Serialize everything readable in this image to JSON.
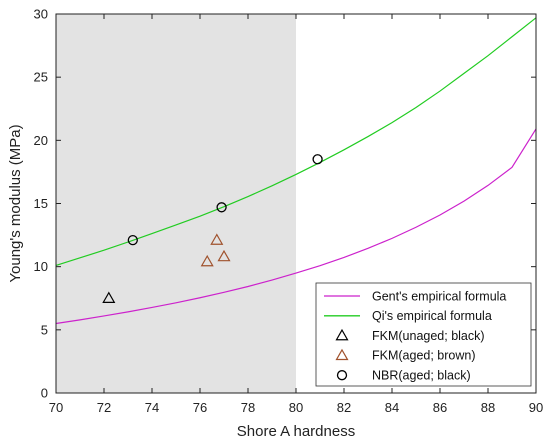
{
  "chart_data": {
    "type": "scatter",
    "title": "",
    "xlabel": "Shore A hardness",
    "ylabel": "Young's modulus (MPa)",
    "xlim": [
      70,
      90
    ],
    "ylim": [
      0,
      30
    ],
    "x_ticks": [
      70,
      72,
      74,
      76,
      78,
      80,
      82,
      84,
      86,
      88,
      90
    ],
    "y_ticks": [
      0,
      5,
      10,
      15,
      20,
      25,
      30
    ],
    "grid": false,
    "legend_position": "bottom-right",
    "shaded_region": {
      "x": [
        70,
        80
      ],
      "color": "#e3e3e3"
    },
    "series": [
      {
        "name": "Gent's empirical formula",
        "kind": "line",
        "color": "#cc22cc",
        "x": [
          70,
          71,
          72,
          73,
          74,
          75,
          76,
          77,
          78,
          79,
          80,
          81,
          82,
          83,
          84,
          85,
          86,
          87,
          88,
          89,
          90
        ],
        "y": [
          5.5,
          5.79,
          6.1,
          6.42,
          6.77,
          7.14,
          7.54,
          7.97,
          8.43,
          8.94,
          9.49,
          10.08,
          10.73,
          11.45,
          12.24,
          13.12,
          14.09,
          15.19,
          16.43,
          17.86,
          20.9
        ]
      },
      {
        "name": "Qi's empirical formula",
        "kind": "line",
        "color": "#22cc22",
        "x": [
          70,
          71,
          72,
          73,
          74,
          75,
          76,
          77,
          78,
          79,
          80,
          81,
          82,
          83,
          84,
          85,
          86,
          87,
          88,
          89,
          90
        ],
        "y": [
          10.1,
          10.7,
          11.3,
          11.95,
          12.62,
          13.3,
          14.0,
          14.75,
          15.55,
          16.4,
          17.3,
          18.25,
          19.25,
          20.3,
          21.4,
          22.6,
          23.9,
          25.3,
          26.7,
          28.2,
          29.7
        ]
      },
      {
        "name": "FKM(unaged; black)",
        "kind": "scatter",
        "marker": "triangle",
        "color": "#000000",
        "x": [
          72.2
        ],
        "y": [
          7.5
        ]
      },
      {
        "name": "FKM(aged; brown)",
        "kind": "scatter",
        "marker": "triangle",
        "color": "#a0522d",
        "x": [
          76.3,
          76.7,
          77.0
        ],
        "y": [
          10.4,
          12.1,
          10.8
        ]
      },
      {
        "name": "NBR(aged; black)",
        "kind": "scatter",
        "marker": "circle",
        "color": "#000000",
        "x": [
          73.2,
          76.9,
          80.9
        ],
        "y": [
          12.1,
          14.7,
          18.5
        ]
      }
    ]
  }
}
